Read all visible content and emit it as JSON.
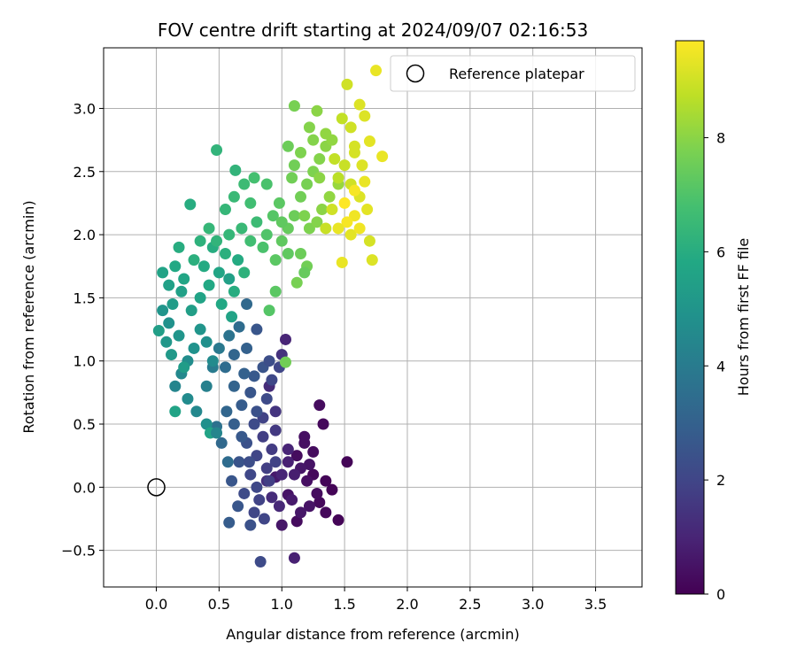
{
  "chart_data": {
    "type": "scatter",
    "title": "FOV centre drift starting at 2024/09/07 02:16:53",
    "xlabel": "Angular distance from reference (arcmin)",
    "ylabel": "Rotation from reference (arcmin)",
    "xlim": [
      -0.42,
      3.87
    ],
    "ylim": [
      -0.79,
      3.48
    ],
    "xticks": [
      0.0,
      0.5,
      1.0,
      1.5,
      2.0,
      2.5,
      3.0,
      3.5
    ],
    "xtick_labels": [
      "0.0",
      "0.5",
      "1.0",
      "1.5",
      "2.0",
      "2.5",
      "3.0",
      "3.5"
    ],
    "yticks": [
      -0.5,
      0.0,
      0.5,
      1.0,
      1.5,
      2.0,
      2.5,
      3.0
    ],
    "ytick_labels": [
      "−0.5",
      "0.0",
      "0.5",
      "1.0",
      "1.5",
      "2.0",
      "2.5",
      "3.0"
    ],
    "grid": true,
    "legend": {
      "placement": "top-right",
      "entries": [
        "Reference platepar"
      ]
    },
    "reference_point": {
      "label": "Reference platepar",
      "x": 0.0,
      "y": 0.0
    },
    "colorbar": {
      "label": "Hours from first FF file",
      "range": [
        0,
        9.7
      ],
      "ticks": [
        0,
        2,
        4,
        6,
        8
      ],
      "tick_labels": [
        "0",
        "2",
        "4",
        "6",
        "8"
      ],
      "colormap": "viridis"
    },
    "series": [
      {
        "points": [
          [
            1.12,
            0.25,
            0.3
          ],
          [
            1.18,
            0.35,
            0.4
          ],
          [
            1.25,
            0.1,
            0.2
          ],
          [
            1.35,
            0.05,
            0.1
          ],
          [
            1.4,
            -0.02,
            0.1
          ],
          [
            1.3,
            -0.12,
            0.2
          ],
          [
            1.45,
            -0.26,
            0.1
          ],
          [
            1.12,
            -0.27,
            0.3
          ],
          [
            1.05,
            -0.06,
            0.5
          ],
          [
            0.95,
            0.08,
            0.7
          ],
          [
            1.0,
            -0.3,
            0.6
          ],
          [
            1.52,
            0.2,
            0.1
          ],
          [
            1.33,
            0.5,
            0.2
          ],
          [
            1.3,
            0.65,
            0.3
          ],
          [
            1.18,
            0.4,
            0.4
          ],
          [
            1.25,
            0.28,
            0.3
          ],
          [
            1.22,
            0.18,
            0.5
          ],
          [
            1.15,
            0.15,
            0.6
          ],
          [
            1.08,
            -0.1,
            0.7
          ],
          [
            1.1,
            -0.56,
            0.9
          ],
          [
            1.2,
            0.05,
            0.4
          ],
          [
            1.28,
            -0.05,
            0.3
          ],
          [
            1.1,
            0.1,
            0.8
          ],
          [
            1.35,
            -0.2,
            0.2
          ],
          [
            1.22,
            -0.15,
            0.5
          ],
          [
            1.05,
            0.2,
            0.9
          ],
          [
            1.0,
            0.1,
            1.0
          ],
          [
            0.98,
            -0.15,
            1.1
          ],
          [
            0.92,
            -0.08,
            1.2
          ],
          [
            0.88,
            0.05,
            1.3
          ],
          [
            1.15,
            -0.2,
            0.6
          ],
          [
            1.05,
            0.3,
            1.0
          ],
          [
            0.95,
            0.6,
            1.5
          ],
          [
            0.9,
            0.8,
            1.2
          ],
          [
            1.03,
            1.17,
            1.0
          ],
          [
            1.0,
            1.05,
            1.4
          ]
        ]
      },
      {
        "points": [
          [
            0.85,
            0.4,
            1.8
          ],
          [
            0.8,
            0.25,
            2.0
          ],
          [
            0.75,
            0.1,
            2.1
          ],
          [
            0.7,
            -0.05,
            2.2
          ],
          [
            0.78,
            -0.2,
            2.0
          ],
          [
            0.82,
            -0.1,
            1.9
          ],
          [
            0.88,
            0.15,
            1.8
          ],
          [
            0.92,
            0.3,
            1.7
          ],
          [
            0.95,
            0.45,
            1.6
          ],
          [
            0.85,
            0.55,
            1.9
          ],
          [
            0.78,
            0.5,
            2.2
          ],
          [
            0.72,
            0.35,
            2.4
          ],
          [
            0.66,
            0.2,
            2.5
          ],
          [
            0.6,
            0.05,
            2.6
          ],
          [
            0.65,
            -0.15,
            2.6
          ],
          [
            0.75,
            -0.3,
            2.4
          ],
          [
            0.83,
            -0.59,
            2.2
          ],
          [
            0.58,
            -0.28,
            2.8
          ],
          [
            0.62,
            0.5,
            2.9
          ],
          [
            0.68,
            0.65,
            2.8
          ],
          [
            0.75,
            0.75,
            2.6
          ],
          [
            0.8,
            0.6,
            2.4
          ],
          [
            0.88,
            0.7,
            2.2
          ],
          [
            0.92,
            0.85,
            2.1
          ],
          [
            0.98,
            0.95,
            2.0
          ],
          [
            0.85,
            0.95,
            2.5
          ],
          [
            0.78,
            0.88,
            2.7
          ],
          [
            0.7,
            0.9,
            3.0
          ],
          [
            0.62,
            0.8,
            3.1
          ],
          [
            0.56,
            0.6,
            3.2
          ],
          [
            0.52,
            0.35,
            3.3
          ],
          [
            0.57,
            0.2,
            3.4
          ],
          [
            0.48,
            0.48,
            3.6
          ],
          [
            0.55,
            0.95,
            3.4
          ],
          [
            0.62,
            1.05,
            3.2
          ],
          [
            0.72,
            1.1,
            3.0
          ],
          [
            0.8,
            1.25,
            2.6
          ],
          [
            0.72,
            1.45,
            3.3
          ],
          [
            0.66,
            1.27,
            3.4
          ],
          [
            0.58,
            1.2,
            3.7
          ],
          [
            0.5,
            1.1,
            3.9
          ],
          [
            0.45,
            0.95,
            4.0
          ],
          [
            0.4,
            0.8,
            4.2
          ],
          [
            0.9,
            1.0,
            2.3
          ],
          [
            0.95,
            0.2,
            1.9
          ],
          [
            0.68,
            0.4,
            2.7
          ],
          [
            0.74,
            0.2,
            2.3
          ],
          [
            0.8,
            0.0,
            2.1
          ],
          [
            0.86,
            -0.25,
            2.0
          ],
          [
            0.9,
            0.05,
            1.8
          ]
        ]
      },
      {
        "points": [
          [
            0.45,
            1.0,
            4.6
          ],
          [
            0.4,
            1.15,
            4.8
          ],
          [
            0.35,
            1.25,
            5.0
          ],
          [
            0.3,
            1.1,
            4.9
          ],
          [
            0.25,
            1.0,
            4.7
          ],
          [
            0.2,
            0.9,
            4.5
          ],
          [
            0.15,
            0.8,
            4.4
          ],
          [
            0.25,
            0.7,
            4.6
          ],
          [
            0.32,
            0.6,
            4.5
          ],
          [
            0.4,
            0.5,
            4.8
          ],
          [
            0.43,
            0.43,
            5.6
          ],
          [
            0.48,
            0.43,
            4.4
          ],
          [
            0.15,
            0.6,
            5.6
          ],
          [
            0.22,
            0.95,
            5.3
          ],
          [
            0.12,
            1.05,
            5.2
          ],
          [
            0.18,
            1.2,
            5.0
          ],
          [
            0.1,
            1.3,
            4.9
          ],
          [
            0.05,
            1.4,
            5.0
          ],
          [
            0.02,
            1.24,
            5.4
          ],
          [
            0.08,
            1.15,
            5.1
          ],
          [
            0.13,
            1.45,
            5.3
          ],
          [
            0.2,
            1.55,
            5.5
          ],
          [
            0.28,
            1.4,
            5.4
          ],
          [
            0.35,
            1.5,
            5.6
          ],
          [
            0.42,
            1.6,
            5.8
          ],
          [
            0.5,
            1.7,
            5.7
          ],
          [
            0.58,
            1.65,
            5.5
          ],
          [
            0.65,
            1.8,
            5.9
          ],
          [
            0.55,
            1.85,
            6.1
          ],
          [
            0.45,
            1.9,
            6.0
          ],
          [
            0.38,
            1.75,
            5.9
          ],
          [
            0.3,
            1.8,
            6.1
          ],
          [
            0.22,
            1.65,
            5.7
          ],
          [
            0.15,
            1.75,
            5.8
          ],
          [
            0.05,
            1.7,
            5.6
          ],
          [
            0.1,
            1.6,
            5.5
          ],
          [
            0.18,
            1.9,
            6.0
          ],
          [
            0.27,
            2.24,
            6.0
          ],
          [
            0.48,
            2.67,
            6.3
          ],
          [
            0.63,
            2.51,
            6.3
          ],
          [
            0.55,
            2.2,
            6.4
          ],
          [
            0.62,
            2.3,
            6.5
          ],
          [
            0.7,
            2.4,
            6.6
          ],
          [
            0.75,
            2.25,
            6.7
          ],
          [
            0.8,
            2.1,
            6.6
          ],
          [
            0.68,
            2.05,
            6.5
          ],
          [
            0.58,
            2.0,
            6.4
          ],
          [
            0.48,
            1.95,
            6.3
          ],
          [
            0.42,
            2.05,
            6.4
          ],
          [
            0.35,
            1.95,
            6.2
          ],
          [
            0.75,
            1.95,
            6.7
          ],
          [
            0.85,
            1.9,
            6.9
          ],
          [
            0.88,
            2.0,
            7.0
          ],
          [
            0.93,
            2.15,
            7.1
          ],
          [
            0.78,
            2.45,
            6.8
          ],
          [
            0.88,
            2.4,
            6.9
          ],
          [
            0.7,
            1.7,
            6.2
          ],
          [
            0.62,
            1.55,
            6.0
          ],
          [
            0.52,
            1.45,
            5.8
          ],
          [
            0.6,
            1.35,
            5.6
          ]
        ]
      },
      {
        "points": [
          [
            0.95,
            1.8,
            7.2
          ],
          [
            1.0,
            1.95,
            7.3
          ],
          [
            1.05,
            2.05,
            7.4
          ],
          [
            1.1,
            2.15,
            7.5
          ],
          [
            1.15,
            2.3,
            7.6
          ],
          [
            1.2,
            2.4,
            7.7
          ],
          [
            1.25,
            2.5,
            7.8
          ],
          [
            1.3,
            2.6,
            7.9
          ],
          [
            1.35,
            2.7,
            8.0
          ],
          [
            1.4,
            2.75,
            8.1
          ],
          [
            1.25,
            2.75,
            7.9
          ],
          [
            1.1,
            2.55,
            7.6
          ],
          [
            1.05,
            2.7,
            7.5
          ],
          [
            1.1,
            3.02,
            7.7
          ],
          [
            1.28,
            2.98,
            8.0
          ],
          [
            1.35,
            2.8,
            8.1
          ],
          [
            1.15,
            1.85,
            7.5
          ],
          [
            1.2,
            1.75,
            7.6
          ],
          [
            1.12,
            1.62,
            7.7
          ],
          [
            1.18,
            1.7,
            7.4
          ],
          [
            1.05,
            1.85,
            7.3
          ],
          [
            1.0,
            2.1,
            7.3
          ],
          [
            0.98,
            2.25,
            7.2
          ],
          [
            0.95,
            1.55,
            7.2
          ],
          [
            1.03,
            0.99,
            7.6
          ],
          [
            0.9,
            1.4,
            7.1
          ],
          [
            1.22,
            2.05,
            7.8
          ],
          [
            1.28,
            2.1,
            7.9
          ],
          [
            1.32,
            2.2,
            8.0
          ],
          [
            1.38,
            2.3,
            8.1
          ],
          [
            1.45,
            2.4,
            8.2
          ],
          [
            1.18,
            2.15,
            7.8
          ],
          [
            1.08,
            2.45,
            7.6
          ],
          [
            1.15,
            2.65,
            7.8
          ],
          [
            1.22,
            2.85,
            7.9
          ],
          [
            1.3,
            2.45,
            8.0
          ]
        ]
      },
      {
        "points": [
          [
            1.75,
            3.3,
            9.4
          ],
          [
            1.52,
            3.19,
            9.0
          ],
          [
            1.62,
            3.03,
            9.2
          ],
          [
            1.48,
            2.92,
            8.8
          ],
          [
            1.55,
            2.85,
            9.0
          ],
          [
            1.66,
            2.94,
            9.2
          ],
          [
            1.7,
            2.74,
            9.3
          ],
          [
            1.8,
            2.62,
            9.4
          ],
          [
            1.58,
            2.65,
            9.1
          ],
          [
            1.5,
            2.55,
            8.9
          ],
          [
            1.45,
            2.45,
            8.7
          ],
          [
            1.55,
            2.4,
            9.0
          ],
          [
            1.62,
            2.3,
            9.2
          ],
          [
            1.68,
            2.2,
            9.3
          ],
          [
            1.58,
            2.15,
            9.5
          ],
          [
            1.52,
            2.1,
            9.6
          ],
          [
            1.45,
            2.05,
            9.4
          ],
          [
            1.55,
            2.0,
            9.3
          ],
          [
            1.62,
            2.05,
            9.5
          ],
          [
            1.7,
            1.95,
            9.1
          ],
          [
            1.72,
            1.8,
            9.2
          ],
          [
            1.48,
            1.78,
            9.4
          ],
          [
            1.58,
            2.35,
            9.6
          ],
          [
            1.4,
            2.2,
            9.0
          ],
          [
            1.35,
            2.05,
            8.9
          ],
          [
            1.5,
            2.25,
            9.7
          ],
          [
            1.64,
            2.55,
            9.2
          ],
          [
            1.58,
            2.7,
            9.1
          ],
          [
            1.42,
            2.6,
            8.8
          ],
          [
            1.66,
            2.42,
            9.4
          ]
        ]
      }
    ]
  }
}
